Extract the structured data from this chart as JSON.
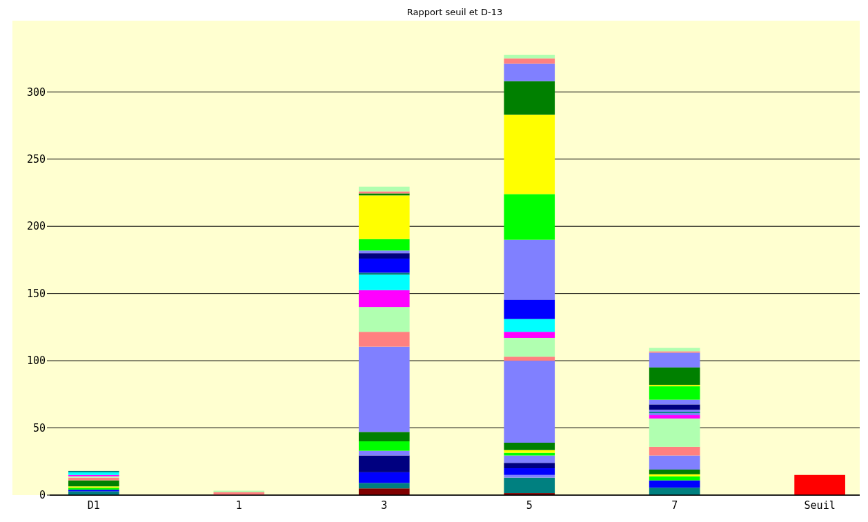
{
  "chart_data": {
    "type": "bar",
    "stacked": true,
    "title": "Rapport seuil et D-13",
    "categories": [
      "D1",
      "1",
      "3",
      "5",
      "7",
      "Seuil"
    ],
    "ylim": [
      0,
      353
    ],
    "yticks": [
      0,
      50,
      100,
      150,
      200,
      250,
      300
    ],
    "grid": "y",
    "series": [
      {
        "values": [
          2.8,
          2.3,
          5,
          1.5,
          5.5,
          15
        ],
        "colors": [
          "#008080",
          "#ff8080",
          "#800000",
          "#800000",
          "#008080",
          "#ff0000"
        ]
      },
      {
        "values": [
          1.2,
          1,
          4,
          11.5,
          5.5,
          null
        ],
        "colors": [
          "#0000ff",
          "#b0ffb0",
          "#008080",
          "#008080",
          "#0000ff",
          null
        ]
      },
      {
        "values": [
          1.5,
          null,
          8,
          2,
          3,
          null
        ],
        "colors": [
          "#00ff00",
          null,
          "#0000ff",
          "#8080ff",
          "#00ff00",
          null
        ]
      },
      {
        "values": [
          1,
          null,
          12.5,
          5,
          1.5,
          null
        ],
        "colors": [
          "#ffff00",
          null,
          "#000080",
          "#0000ff",
          "#ffff00",
          null
        ]
      },
      {
        "values": [
          4.5,
          null,
          3.5,
          4,
          3.5,
          null
        ],
        "colors": [
          "#008000",
          null,
          "#8080ff",
          "#000080",
          "#008000",
          null
        ]
      },
      {
        "values": [
          2,
          null,
          7,
          5.5,
          10.5,
          null
        ],
        "colors": [
          "#ff8080",
          null,
          "#00ff00",
          "#8080ff",
          "#8080ff",
          null
        ]
      },
      {
        "values": [
          1,
          null,
          7,
          2,
          6.5,
          null
        ],
        "colors": [
          "#b0ffb0",
          null,
          "#008000",
          "#00ff00",
          "#ff8080",
          null
        ]
      },
      {
        "values": [
          1,
          null,
          63.5,
          2,
          21,
          null
        ],
        "colors": [
          "#ff00ff",
          null,
          "#8080ff",
          "#ffff00",
          "#b0ffb0",
          null
        ]
      },
      {
        "values": [
          2,
          null,
          11,
          5.5,
          2.5,
          null
        ],
        "colors": [
          "#00ffff",
          null,
          "#ff8080",
          "#008000",
          "#ff00ff",
          null
        ]
      },
      {
        "values": [
          1,
          null,
          18.5,
          61,
          1.5,
          null
        ],
        "colors": [
          "#008080",
          null,
          "#b0ffb0",
          "#8080ff",
          "#8080ff",
          null
        ]
      },
      {
        "values": [
          null,
          null,
          12.5,
          3,
          1,
          null
        ],
        "colors": [
          null,
          null,
          "#ff00ff",
          "#ff8080",
          "#008080",
          null
        ]
      },
      {
        "values": [
          null,
          null,
          11.5,
          14,
          1.5,
          null
        ],
        "colors": [
          null,
          null,
          "#00ffff",
          "#b0ffb0",
          "#8080ff",
          null
        ]
      },
      {
        "values": [
          null,
          null,
          1.5,
          4.5,
          4,
          null
        ],
        "colors": [
          null,
          null,
          "#008080",
          "#ff00ff",
          "#000080",
          null
        ]
      },
      {
        "values": [
          null,
          null,
          10.5,
          9.5,
          3.5,
          null
        ],
        "colors": [
          null,
          null,
          "#0000ff",
          "#00ffff",
          "#8080ff",
          null
        ]
      },
      {
        "values": [
          null,
          null,
          4,
          14.5,
          10,
          null
        ],
        "colors": [
          null,
          null,
          "#000080",
          "#0000ff",
          "#00ff00",
          null
        ]
      },
      {
        "values": [
          null,
          null,
          2,
          44.5,
          1,
          null
        ],
        "colors": [
          null,
          null,
          "#8080ff",
          "#8080ff",
          "#ffff00",
          null
        ]
      },
      {
        "values": [
          null,
          null,
          8.5,
          34,
          13,
          null
        ],
        "colors": [
          null,
          null,
          "#00ff00",
          "#00ff00",
          "#008000",
          null
        ]
      },
      {
        "values": [
          null,
          null,
          32.5,
          59,
          11,
          null
        ],
        "colors": [
          null,
          null,
          "#ffff00",
          "#ffff00",
          "#8080ff",
          null
        ]
      },
      {
        "values": [
          null,
          null,
          1.5,
          25,
          1,
          null
        ],
        "colors": [
          null,
          null,
          "#008000",
          "#008000",
          "#ff8080",
          null
        ]
      },
      {
        "values": [
          null,
          null,
          1.5,
          13,
          2.5,
          null
        ],
        "colors": [
          null,
          null,
          "#ff8080",
          "#8080ff",
          "#b0ffb0",
          null
        ]
      },
      {
        "values": [
          null,
          null,
          3.5,
          4,
          null,
          null
        ],
        "colors": [
          null,
          null,
          "#b0ffb0",
          "#ff8080",
          null,
          null
        ]
      },
      {
        "values": [
          null,
          null,
          null,
          2.5,
          null,
          null
        ],
        "colors": [
          null,
          null,
          null,
          "#b0ffb0",
          null,
          null
        ]
      }
    ]
  }
}
